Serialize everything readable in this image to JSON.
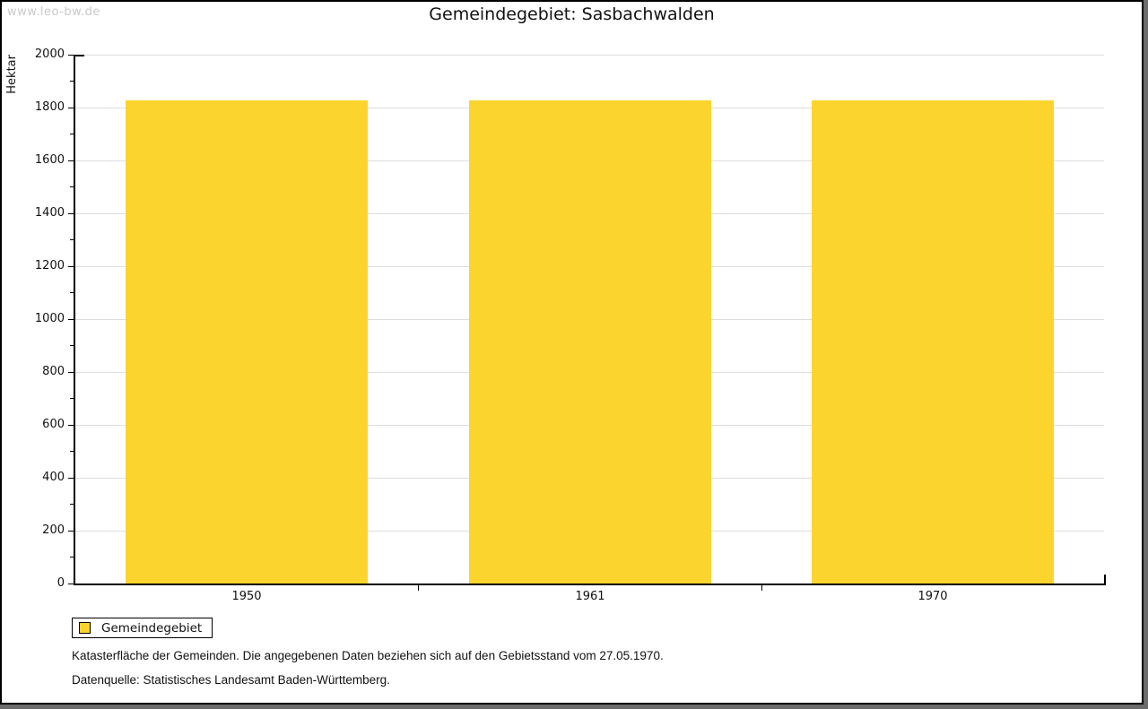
{
  "window": {
    "watermark": "www.leo-bw.de",
    "title": "Gemeindegebiet: Sasbachwalden"
  },
  "chart_data": {
    "type": "bar",
    "title": "Gemeindegebiet: Sasbachwalden",
    "categories": [
      "1950",
      "1961",
      "1970"
    ],
    "series": [
      {
        "name": "Gemeindegebiet",
        "values": [
          1827,
          1827,
          1827
        ]
      }
    ],
    "xlabel": "",
    "ylabel": "Hektar",
    "ylim": [
      0,
      2000
    ],
    "y_major_step": 200,
    "y_minor_step": 100,
    "grid": true,
    "legend_position": "bottom-left",
    "bar_color": "#FCD42E",
    "grid_color": "#DDDDDD"
  },
  "legend": {
    "label": "Gemeindegebiet"
  },
  "footnotes": {
    "line1": "Katasterfläche der Gemeinden. Die angegebenen Daten beziehen sich auf den Gebietsstand vom 27.05.1970.",
    "line2": "Datenquelle: Statistisches Landesamt Baden-Württemberg."
  }
}
